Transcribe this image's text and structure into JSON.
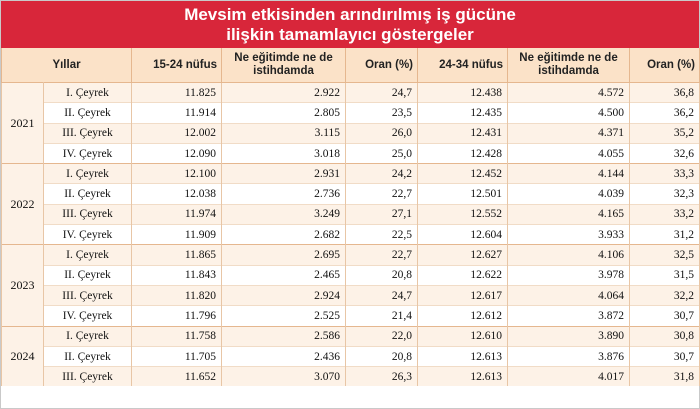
{
  "title": {
    "line1": "Mevsim etkisinden arındırılmış iş gücüne",
    "line2": "ilişkin tamamlayıcı göstergeler"
  },
  "headers": {
    "years": "Yıllar",
    "pop1524": "15-24 nüfus",
    "neet1524": "Ne eğitimde ne de istihdamda",
    "rate1524": "Oran (%)",
    "pop2434": "24-34 nüfus",
    "neet2434": "Ne eğitimde ne de istihdamda",
    "rate2434": "Oran (%)"
  },
  "years": [
    {
      "year": "2021",
      "rows": [
        {
          "q": "I. Çeyrek",
          "pop1524": "11.825",
          "neet1524": "2.922",
          "rate1524": "24,7",
          "pop2434": "12.438",
          "neet2434": "4.572",
          "rate2434": "36,8"
        },
        {
          "q": "II. Çeyrek",
          "pop1524": "11.914",
          "neet1524": "2.805",
          "rate1524": "23,5",
          "pop2434": "12.435",
          "neet2434": "4.500",
          "rate2434": "36,2"
        },
        {
          "q": "III. Çeyrek",
          "pop1524": "12.002",
          "neet1524": "3.115",
          "rate1524": "26,0",
          "pop2434": "12.431",
          "neet2434": "4.371",
          "rate2434": "35,2"
        },
        {
          "q": "IV. Çeyrek",
          "pop1524": "12.090",
          "neet1524": "3.018",
          "rate1524": "25,0",
          "pop2434": "12.428",
          "neet2434": "4.055",
          "rate2434": "32,6"
        }
      ]
    },
    {
      "year": "2022",
      "rows": [
        {
          "q": "I. Çeyrek",
          "pop1524": "12.100",
          "neet1524": "2.931",
          "rate1524": "24,2",
          "pop2434": "12.452",
          "neet2434": "4.144",
          "rate2434": "33,3"
        },
        {
          "q": "II. Çeyrek",
          "pop1524": "12.038",
          "neet1524": "2.736",
          "rate1524": "22,7",
          "pop2434": "12.501",
          "neet2434": "4.039",
          "rate2434": "32,3"
        },
        {
          "q": "III. Çeyrek",
          "pop1524": "11.974",
          "neet1524": "3.249",
          "rate1524": "27,1",
          "pop2434": "12.552",
          "neet2434": "4.165",
          "rate2434": "33,2"
        },
        {
          "q": "IV. Çeyrek",
          "pop1524": "11.909",
          "neet1524": "2.682",
          "rate1524": "22,5",
          "pop2434": "12.604",
          "neet2434": "3.933",
          "rate2434": "31,2"
        }
      ]
    },
    {
      "year": "2023",
      "rows": [
        {
          "q": "I. Çeyrek",
          "pop1524": "11.865",
          "neet1524": "2.695",
          "rate1524": "22,7",
          "pop2434": "12.627",
          "neet2434": "4.106",
          "rate2434": "32,5"
        },
        {
          "q": "II. Çeyrek",
          "pop1524": "11.843",
          "neet1524": "2.465",
          "rate1524": "20,8",
          "pop2434": "12.622",
          "neet2434": "3.978",
          "rate2434": "31,5"
        },
        {
          "q": "III. Çeyrek",
          "pop1524": "11.820",
          "neet1524": "2.924",
          "rate1524": "24,7",
          "pop2434": "12.617",
          "neet2434": "4.064",
          "rate2434": "32,2"
        },
        {
          "q": "IV. Çeyrek",
          "pop1524": "11.796",
          "neet1524": "2.525",
          "rate1524": "21,4",
          "pop2434": "12.612",
          "neet2434": "3.872",
          "rate2434": "30,7"
        }
      ]
    },
    {
      "year": "2024",
      "rows": [
        {
          "q": "I. Çeyrek",
          "pop1524": "11.758",
          "neet1524": "2.586",
          "rate1524": "22,0",
          "pop2434": "12.610",
          "neet2434": "3.890",
          "rate2434": "30,8"
        },
        {
          "q": "II. Çeyrek",
          "pop1524": "11.705",
          "neet1524": "2.436",
          "rate1524": "20,8",
          "pop2434": "12.613",
          "neet2434": "3.876",
          "rate2434": "30,7"
        },
        {
          "q": "III. Çeyrek",
          "pop1524": "11.652",
          "neet1524": "3.070",
          "rate1524": "26,3",
          "pop2434": "12.613",
          "neet2434": "4.017",
          "rate2434": "31,8"
        }
      ]
    }
  ],
  "colors": {
    "title_bg": "#d8263a",
    "header_bg": "#fbe2c8",
    "alt_row_bg": "#fdf2e7"
  }
}
